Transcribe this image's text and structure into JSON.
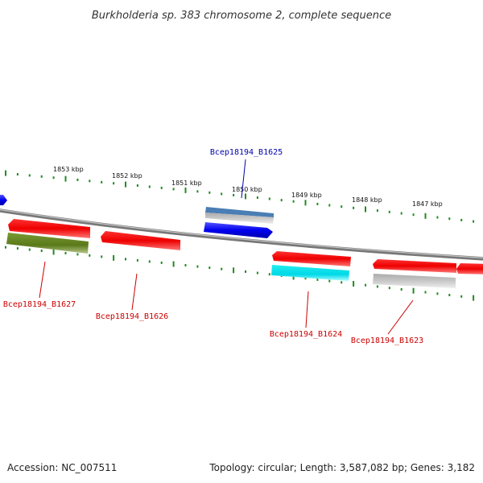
{
  "title": "Burkholderia sp. 383 chromosome 2, complete sequence",
  "scale_labels": [
    "1853 kbp",
    "1852 kbp",
    "1851 kbp",
    "1850 kbp",
    "1849 kbp",
    "1848 kbp",
    "1847 kbp"
  ],
  "gene_labels": {
    "b1625": "Bcep18194_B1625",
    "b1627": "Bcep18194_B1627",
    "b1626": "Bcep18194_B1626",
    "b1624": "Bcep18194_B1624",
    "b1623": "Bcep18194_B1623"
  },
  "footer": {
    "accession": "Accession: NC_007511",
    "summary": "Topology: circular; Length: 3,587,082 bp; Genes: 3,182"
  },
  "colors": {
    "forward_gene": "#0000ee",
    "reverse_gene": "#ee0000",
    "rna_gene": "#6b8e23",
    "pseudo_gene": "#00e5ee",
    "other_gene": "#bbbbbb",
    "ticks": "#228b22",
    "backbone": "#888888"
  }
}
